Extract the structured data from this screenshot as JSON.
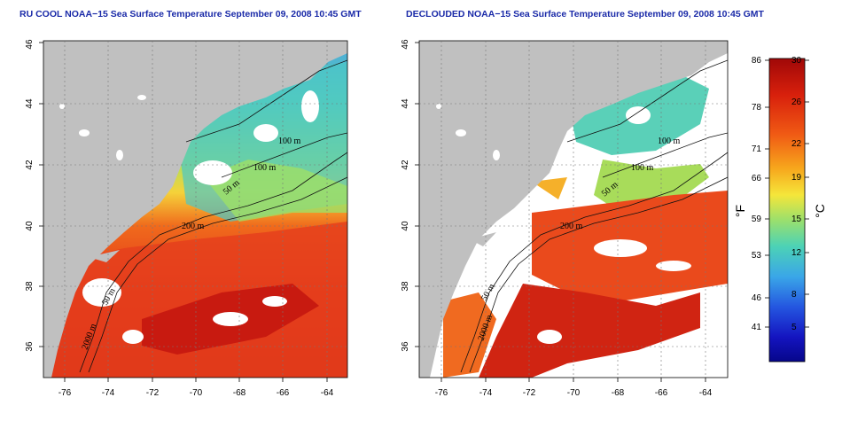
{
  "panels": [
    {
      "title": "RU COOL NOAA−15 Sea Surface Temperature September 09, 2008 10:45 GMT",
      "x_ticks": [
        "-76",
        "-74",
        "-72",
        "-70",
        "-68",
        "-66",
        "-64"
      ],
      "y_ticks": [
        "36",
        "38",
        "40",
        "42",
        "44",
        "46"
      ],
      "depth_labels": [
        "100 m",
        "100 m",
        "50 m",
        "200 m",
        "50 m",
        "2000 m"
      ]
    },
    {
      "title": "DECLOUDED NOAA−15 Sea Surface Temperature September 09, 2008 10:45 GMT",
      "x_ticks": [
        "-76",
        "-74",
        "-72",
        "-70",
        "-68",
        "-66",
        "-64"
      ],
      "y_ticks": [
        "36",
        "38",
        "40",
        "42",
        "44",
        "46"
      ],
      "depth_labels": [
        "100 m",
        "100 m",
        "50 m",
        "200 m",
        "50 m",
        "2000 m"
      ]
    }
  ],
  "colorbar": {
    "f_unit": "°F",
    "c_unit": "°C",
    "f_ticks": [
      "86",
      "78",
      "71",
      "66",
      "59",
      "53",
      "46",
      "41"
    ],
    "c_ticks": [
      "30",
      "26",
      "22",
      "19",
      "15",
      "12",
      "8",
      "5"
    ],
    "colors": [
      "#b01010",
      "#e02a10",
      "#f4661a",
      "#f8a020",
      "#f7e23a",
      "#a8e05a",
      "#5ad0a0",
      "#3aa8e0",
      "#2a5ce0",
      "#1a1ab0",
      "#0a0a8a"
    ]
  },
  "map": {
    "land_color": "#c0c0c0",
    "warm_color": "#e03a18",
    "cool_color": "#6ad0a8"
  }
}
